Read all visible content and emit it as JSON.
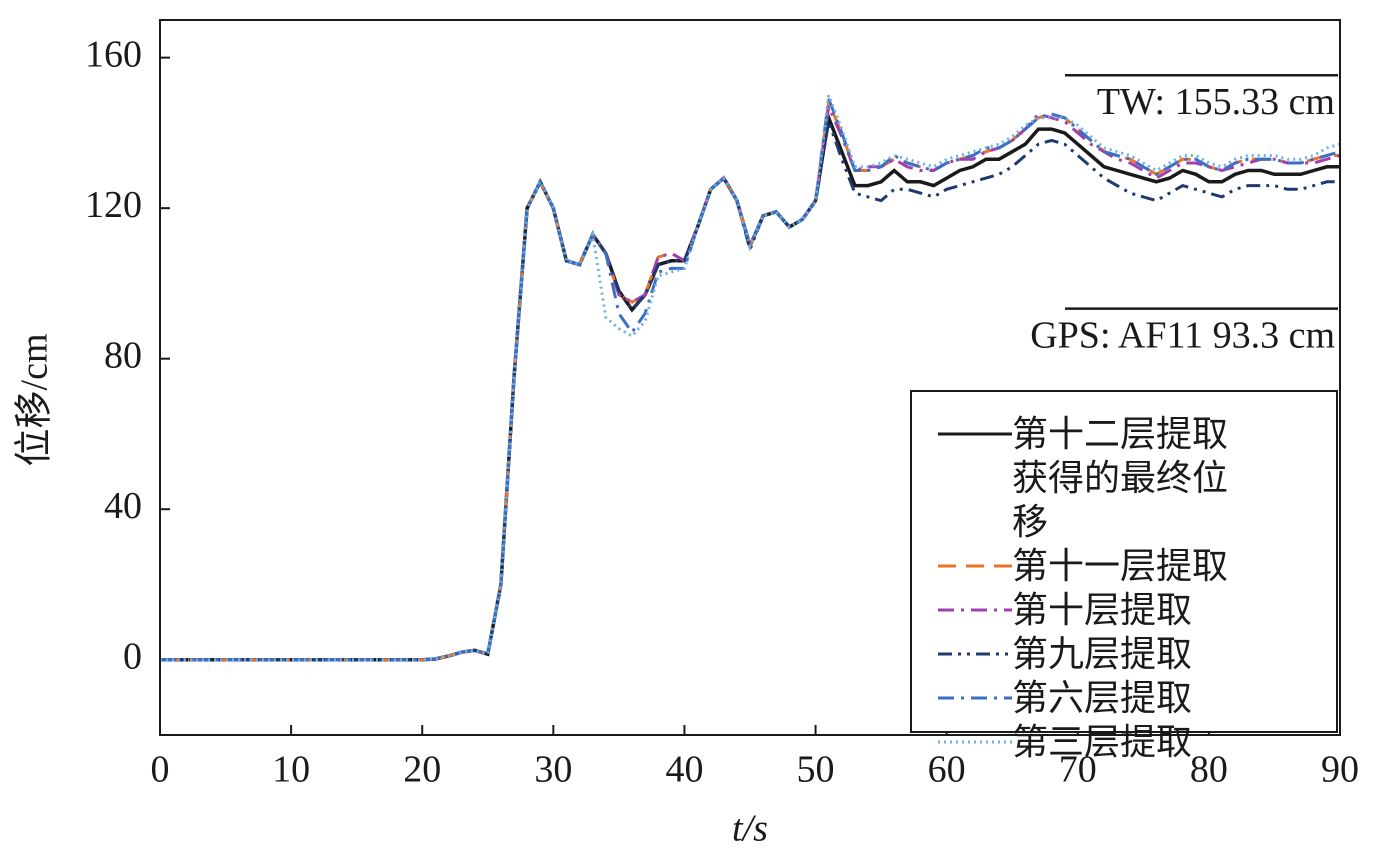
{
  "chart_data": {
    "type": "line",
    "xlabel": "t/s",
    "ylabel": "位移/cm",
    "xlim": [
      0,
      90
    ],
    "ylim": [
      -20,
      170
    ],
    "xticks": [
      0,
      10,
      20,
      30,
      40,
      50,
      60,
      70,
      80,
      90
    ],
    "yticks": [
      0,
      40,
      80,
      120,
      160
    ],
    "legend": "lower right",
    "annotations": [
      {
        "text": "TW: 155.33 cm",
        "value": 155.33
      },
      {
        "text": "GPS: AF11  93.3 cm",
        "value": 93.3
      }
    ],
    "x": [
      0,
      1,
      2,
      3,
      4,
      5,
      6,
      7,
      8,
      9,
      10,
      11,
      12,
      13,
      14,
      15,
      16,
      17,
      18,
      19,
      20,
      21,
      22,
      23,
      24,
      25,
      26,
      27,
      28,
      29,
      30,
      31,
      32,
      33,
      34,
      35,
      36,
      37,
      38,
      39,
      40,
      41,
      42,
      43,
      44,
      45,
      46,
      47,
      48,
      49,
      50,
      51,
      52,
      53,
      54,
      55,
      56,
      57,
      58,
      59,
      60,
      61,
      62,
      63,
      64,
      65,
      66,
      67,
      68,
      69,
      70,
      71,
      72,
      73,
      74,
      75,
      76,
      77,
      78,
      79,
      80,
      81,
      82,
      83,
      84,
      85,
      86,
      87,
      88,
      89,
      90
    ],
    "series": [
      {
        "name": "第十二层提取获得的最终位移",
        "color": "#1a1a1a",
        "style": "solid",
        "values": [
          0,
          0,
          0,
          0,
          0,
          0,
          0,
          0,
          0,
          0,
          0,
          0,
          0,
          0,
          0,
          0,
          0,
          0,
          0,
          0,
          0,
          0.2,
          1,
          2,
          2.5,
          1.5,
          20,
          75,
          120,
          127,
          120,
          106,
          105,
          113,
          108,
          98,
          93,
          97,
          105,
          106,
          106,
          115,
          125,
          128,
          122,
          110,
          118,
          119,
          115,
          117,
          122,
          144,
          135,
          126,
          126,
          127,
          130,
          127,
          127,
          126,
          128,
          130,
          131,
          133,
          133,
          135,
          137,
          141,
          141,
          140,
          137,
          134,
          131,
          130,
          129,
          128,
          127,
          128,
          130,
          129,
          127,
          127,
          129,
          130,
          130,
          129,
          129,
          129,
          130,
          131,
          131
        ]
      },
      {
        "name": "第十一层提取",
        "color": "#e8742a",
        "style": "dashed",
        "values": [
          0,
          0,
          0,
          0,
          0,
          0,
          0,
          0,
          0,
          0,
          0,
          0,
          0,
          0,
          0,
          0,
          0,
          0,
          0,
          0,
          0,
          0.2,
          1,
          2,
          2.5,
          1.5,
          20,
          75,
          120,
          127,
          120,
          106,
          105,
          113,
          108,
          97,
          95,
          97,
          107,
          108,
          106,
          115,
          125,
          128,
          122,
          110,
          118,
          119,
          115,
          117,
          122,
          148,
          140,
          130,
          130,
          131,
          133,
          132,
          131,
          130,
          132,
          133,
          134,
          135,
          136,
          138,
          141,
          144,
          145,
          144,
          141,
          138,
          135,
          134,
          133,
          131,
          129,
          131,
          133,
          133,
          131,
          130,
          132,
          133,
          133,
          133,
          132,
          132,
          133,
          134,
          134
        ]
      },
      {
        "name": "第十层提取",
        "color": "#a040b0",
        "style": "dashdot",
        "values": [
          0,
          0,
          0,
          0,
          0,
          0,
          0,
          0,
          0,
          0,
          0,
          0,
          0,
          0,
          0,
          0,
          0,
          0,
          0,
          0,
          0,
          0.2,
          1,
          2,
          2.5,
          1.5,
          20,
          75,
          120,
          127,
          120,
          106,
          105,
          113,
          108,
          97,
          95,
          97,
          107,
          108,
          106,
          115,
          125,
          128,
          122,
          110,
          118,
          119,
          115,
          117,
          122,
          147,
          139,
          130,
          131,
          131,
          133,
          131,
          130,
          130,
          132,
          133,
          133,
          135,
          136,
          138,
          141,
          145,
          144,
          143,
          140,
          137,
          135,
          133,
          132,
          130,
          128,
          130,
          132,
          132,
          131,
          130,
          131,
          132,
          133,
          133,
          132,
          132,
          132,
          133,
          134
        ]
      },
      {
        "name": "第九层提取",
        "color": "#1f3a6e",
        "style": "dashdotdot",
        "values": [
          0,
          0,
          0,
          0,
          0,
          0,
          0,
          0,
          0,
          0,
          0,
          0,
          0,
          0,
          0,
          0,
          0,
          0,
          0,
          0,
          0,
          0.2,
          1,
          2,
          2.5,
          1.5,
          20,
          75,
          120,
          127,
          120,
          106,
          105,
          113,
          108,
          98,
          93,
          97,
          105,
          106,
          106,
          115,
          125,
          128,
          122,
          109,
          118,
          119,
          115,
          117,
          122,
          143,
          133,
          124,
          123,
          122,
          125,
          125,
          124,
          123,
          125,
          126,
          127,
          128,
          129,
          131,
          134,
          137,
          138,
          137,
          134,
          131,
          128,
          126,
          124,
          123,
          122,
          124,
          126,
          125,
          124,
          123,
          125,
          126,
          126,
          126,
          125,
          125,
          126,
          127,
          127
        ]
      },
      {
        "name": "第六层提取",
        "color": "#3a6fc4",
        "style": "dashdot",
        "values": [
          0,
          0,
          0,
          0,
          0,
          0,
          0,
          0,
          0,
          0,
          0,
          0,
          0,
          0,
          0,
          0,
          0,
          0,
          0,
          0,
          0,
          0.2,
          1,
          2,
          2.5,
          1.5,
          20,
          75,
          120,
          127,
          120,
          106,
          105,
          113,
          108,
          92,
          87,
          92,
          103,
          104,
          104,
          115,
          125,
          128,
          122,
          110,
          118,
          119,
          115,
          117,
          122,
          149,
          140,
          130,
          130,
          131,
          134,
          132,
          131,
          130,
          132,
          133,
          134,
          136,
          136,
          138,
          141,
          144,
          145,
          144,
          141,
          138,
          135,
          134,
          133,
          131,
          129,
          131,
          133,
          133,
          131,
          130,
          132,
          133,
          133,
          133,
          132,
          132,
          133,
          134,
          135
        ]
      },
      {
        "name": "第三层提取",
        "color": "#6ab0e0",
        "style": "dotted",
        "values": [
          0,
          0,
          0,
          0,
          0,
          0,
          0,
          0,
          0,
          0,
          0,
          0,
          0,
          0,
          0,
          0,
          0,
          0,
          0,
          0,
          0,
          0.2,
          1,
          2,
          2.5,
          1.5,
          20,
          75,
          120,
          127,
          120,
          106,
          105,
          113,
          91,
          88,
          86,
          90,
          102,
          103,
          104,
          115,
          125,
          128,
          122,
          110,
          118,
          119,
          115,
          117,
          122,
          150,
          141,
          131,
          131,
          132,
          134,
          133,
          132,
          131,
          133,
          134,
          135,
          136,
          137,
          139,
          142,
          144,
          144,
          144,
          142,
          139,
          136,
          135,
          134,
          132,
          130,
          132,
          134,
          134,
          132,
          131,
          133,
          134,
          134,
          134,
          133,
          133,
          134,
          136,
          137
        ]
      }
    ]
  }
}
